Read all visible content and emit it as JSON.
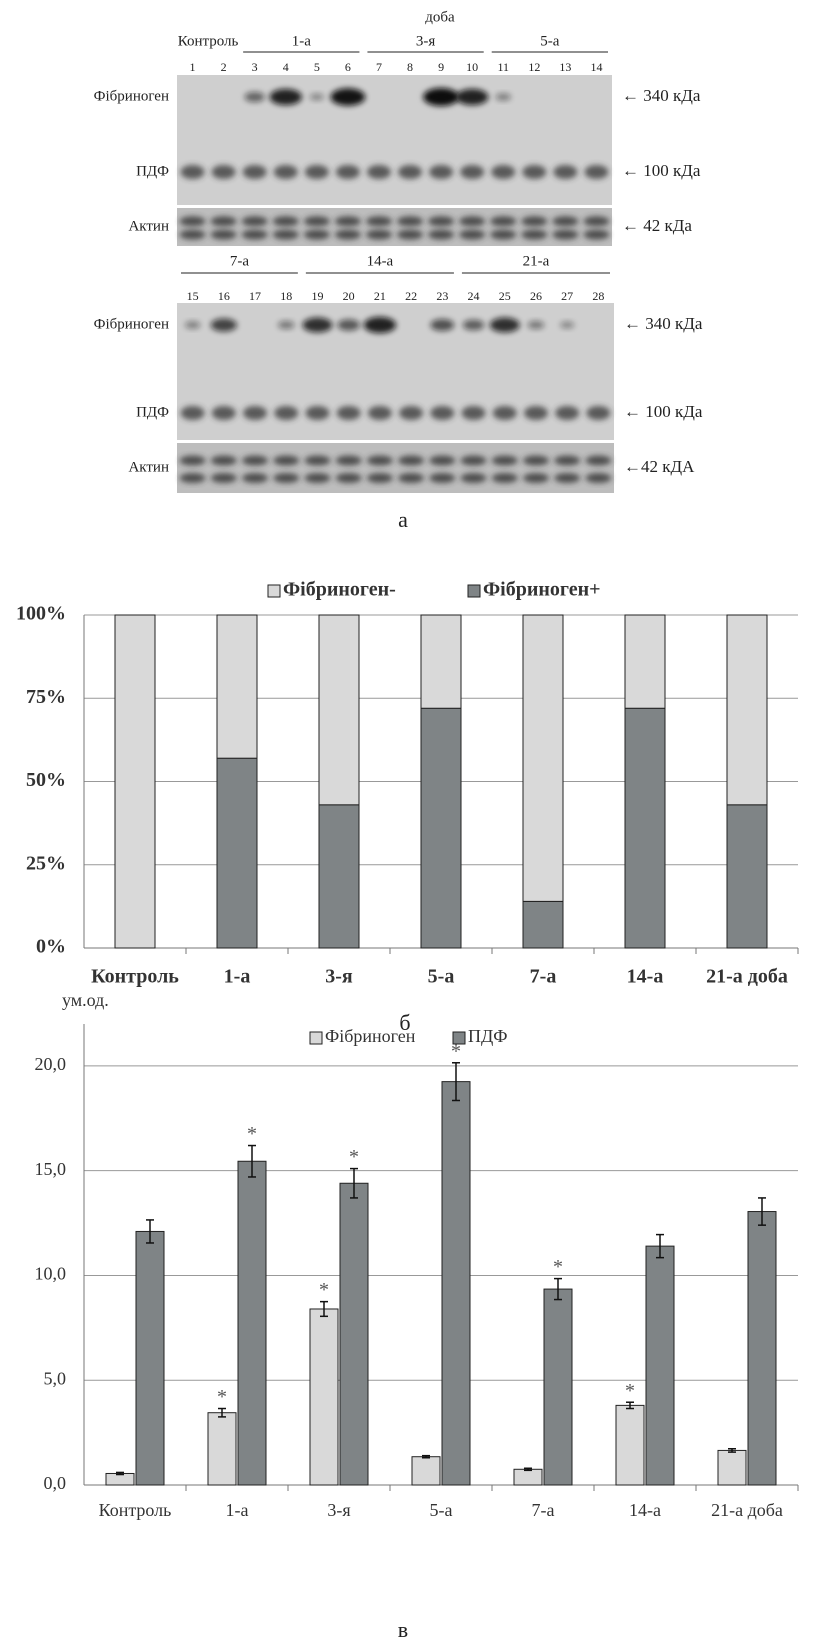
{
  "blot": {
    "day_label": "доба",
    "caption": "а",
    "panels": [
      {
        "groups": [
          "Контроль",
          "1-а",
          "3-я",
          "5-а"
        ],
        "lanes": [
          1,
          2,
          3,
          4,
          5,
          6,
          7,
          8,
          9,
          10,
          11,
          12,
          13,
          14
        ],
        "band_labels": [
          "Фібриноген",
          "ПДФ",
          "Актин"
        ],
        "size_labels": [
          "← 340 кДа",
          "← 100 кДа",
          "← 42 кДа"
        ]
      },
      {
        "groups": [
          "7-а",
          "14-а",
          "21-а"
        ],
        "lanes": [
          15,
          16,
          17,
          18,
          19,
          20,
          21,
          22,
          23,
          24,
          25,
          26,
          27,
          28
        ],
        "band_labels": [
          "Фібриноген",
          "ПДФ",
          "Актин"
        ],
        "size_labels": [
          "← 340 кДа",
          "← 100 кДа",
          "←42 кДА"
        ]
      }
    ]
  },
  "chart_data": [
    {
      "type": "stacked_bar",
      "caption": "б",
      "categories": [
        "Контроль",
        "1-а",
        "3-я",
        "5-а",
        "7-а",
        "14-а",
        "21-а доба"
      ],
      "series": [
        {
          "name": "Фібриноген-",
          "color": "#d9d9d9",
          "values": [
            100,
            43,
            57,
            28,
            86,
            28,
            57
          ]
        },
        {
          "name": "Фібриноген+",
          "color": "#7f8486",
          "values": [
            0,
            57,
            43,
            72,
            14,
            72,
            43
          ]
        }
      ],
      "ylim": [
        0,
        100
      ],
      "yticks": [
        {
          "value": 0,
          "label": "0%"
        },
        {
          "value": 25,
          "label": "25%"
        },
        {
          "value": 50,
          "label": "50%"
        },
        {
          "value": 75,
          "label": "75%"
        },
        {
          "value": 100,
          "label": "100%"
        }
      ],
      "grid": true
    },
    {
      "type": "grouped_bar",
      "caption": "в",
      "y_label": "ум.од.",
      "categories": [
        "Контроль",
        "1-а",
        "3-я",
        "5-а",
        "7-а",
        "14-а",
        "21-а доба"
      ],
      "series": [
        {
          "name": "Фібриноген",
          "color": "#d9d9d9",
          "values": [
            0.55,
            3.45,
            8.4,
            1.35,
            0.75,
            3.8,
            1.65
          ],
          "errors": [
            0.05,
            0.2,
            0.35,
            0.05,
            0.05,
            0.15,
            0.08
          ],
          "significance": [
            null,
            "*",
            "*",
            null,
            null,
            "*",
            null
          ]
        },
        {
          "name": "ПДФ",
          "color": "#7f8486",
          "values": [
            12.1,
            15.45,
            14.4,
            19.25,
            9.35,
            11.4,
            13.05
          ],
          "errors": [
            0.55,
            0.75,
            0.7,
            0.9,
            0.5,
            0.55,
            0.65
          ],
          "significance": [
            null,
            "*",
            "*",
            "*",
            "*",
            null,
            null
          ]
        }
      ],
      "ylim": [
        0,
        22
      ],
      "yticks": [
        {
          "value": 0,
          "label": "0,0"
        },
        {
          "value": 5,
          "label": "5,0"
        },
        {
          "value": 10,
          "label": "10,0"
        },
        {
          "value": 15,
          "label": "15,0"
        },
        {
          "value": 20,
          "label": "20,0"
        }
      ],
      "grid": true
    }
  ]
}
